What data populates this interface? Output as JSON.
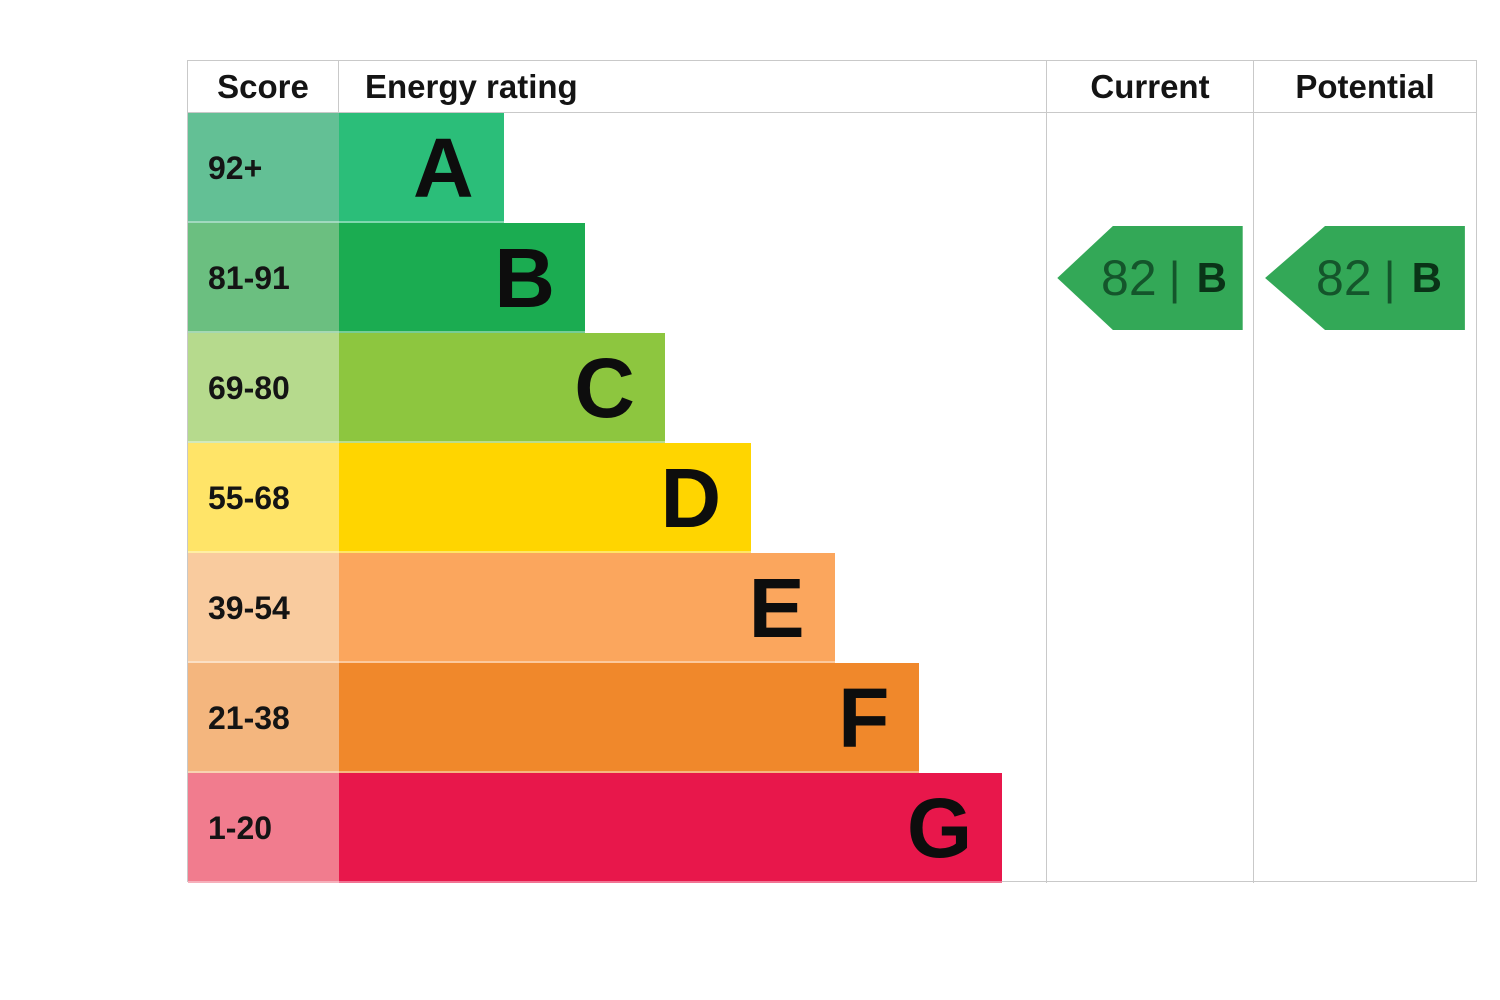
{
  "header": {
    "score": "Score",
    "energy_rating": "Energy rating",
    "current": "Current",
    "potential": "Potential"
  },
  "chart_data": {
    "type": "bar",
    "orientation": "horizontal",
    "description": "EPC energy efficiency rating chart with stepped band bars A to G",
    "categories": [
      "A",
      "B",
      "C",
      "D",
      "E",
      "F",
      "G"
    ],
    "bands": [
      {
        "score": "92+",
        "letter": "A",
        "bar_color": "#2BBE79",
        "score_cell_color": "#63C095",
        "bar_width_pct": 23.3
      },
      {
        "score": "81-91",
        "letter": "B",
        "bar_color": "#1BAC51",
        "score_cell_color": "#6BBF80",
        "bar_width_pct": 34.8
      },
      {
        "score": "69-80",
        "letter": "C",
        "bar_color": "#8DC63F",
        "score_cell_color": "#B6DA8D",
        "bar_width_pct": 46.1
      },
      {
        "score": "55-68",
        "letter": "D",
        "bar_color": "#FFD500",
        "score_cell_color": "#FFE468",
        "bar_width_pct": 58.3
      },
      {
        "score": "39-54",
        "letter": "E",
        "bar_color": "#FBA65D",
        "score_cell_color": "#F9CB9E",
        "bar_width_pct": 70.1
      },
      {
        "score": "21-38",
        "letter": "F",
        "bar_color": "#F0882B",
        "score_cell_color": "#F4B67E",
        "bar_width_pct": 82.1
      },
      {
        "score": "1-20",
        "letter": "G",
        "bar_color": "#E8174B",
        "score_cell_color": "#F17C8E",
        "bar_width_pct": 93.8
      }
    ],
    "current": {
      "value": "82",
      "separator": "|",
      "band": "B",
      "arrow_color": "#33A857",
      "text_color": "#14552B",
      "band_text_color": "#0A3317"
    },
    "potential": {
      "value": "82",
      "separator": "|",
      "band": "B",
      "arrow_color": "#33A857",
      "text_color": "#14552B",
      "band_text_color": "#0A3317"
    }
  }
}
